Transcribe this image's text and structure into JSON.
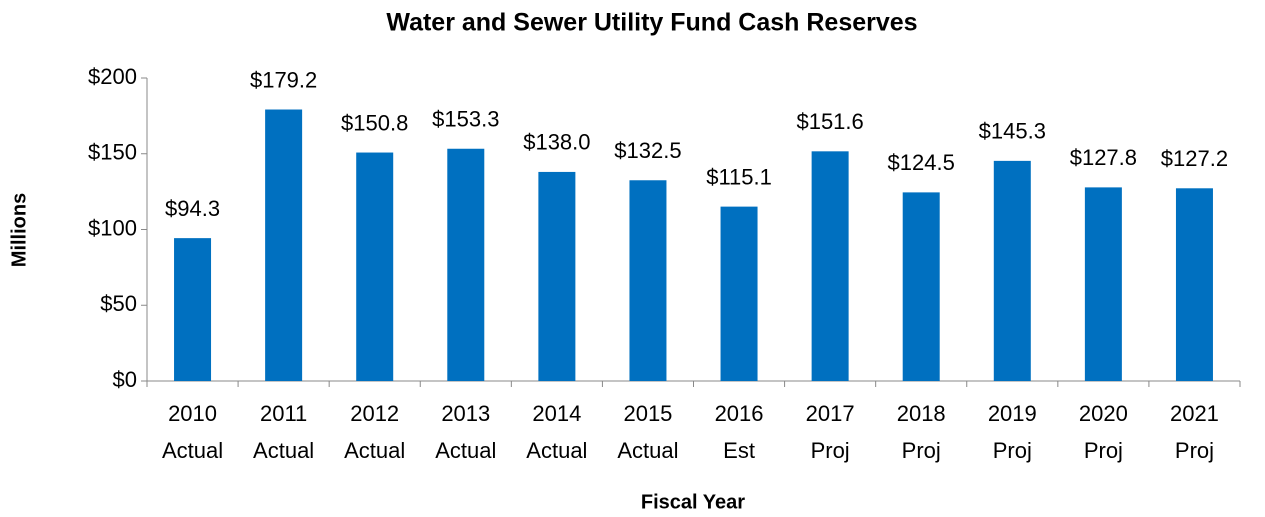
{
  "chart_data": {
    "type": "bar",
    "title": "Water and Sewer Utility Fund Cash Reserves",
    "x_label": "Fiscal Year",
    "y_label": "Millions",
    "categories": [
      [
        "2010",
        "Actual"
      ],
      [
        "2011",
        "Actual"
      ],
      [
        "2012",
        "Actual"
      ],
      [
        "2013",
        "Actual"
      ],
      [
        "2014",
        "Actual"
      ],
      [
        "2015",
        "Actual"
      ],
      [
        "2016",
        "Est"
      ],
      [
        "2017",
        "Proj"
      ],
      [
        "2018",
        "Proj"
      ],
      [
        "2019",
        "Proj"
      ],
      [
        "2020",
        "Proj"
      ],
      [
        "2021",
        "Proj"
      ]
    ],
    "values": [
      94.3,
      179.2,
      150.8,
      153.3,
      138.0,
      132.5,
      115.1,
      151.6,
      124.5,
      145.3,
      127.8,
      127.2
    ],
    "value_labels": [
      "$94.3",
      "$179.2",
      "$150.8",
      "$153.3",
      "$138.0",
      "$132.5",
      "$115.1",
      "$151.6",
      "$124.5",
      "$145.3",
      "$127.8",
      "$127.2"
    ],
    "color": "#0070c0",
    "ylim": [
      0,
      200
    ],
    "yticks": [
      {
        "value": 0,
        "label": "$0"
      },
      {
        "value": 50,
        "label": "$50"
      },
      {
        "value": 100,
        "label": "$100"
      },
      {
        "value": 150,
        "label": "$150"
      },
      {
        "value": 200,
        "label": "$200"
      }
    ]
  }
}
